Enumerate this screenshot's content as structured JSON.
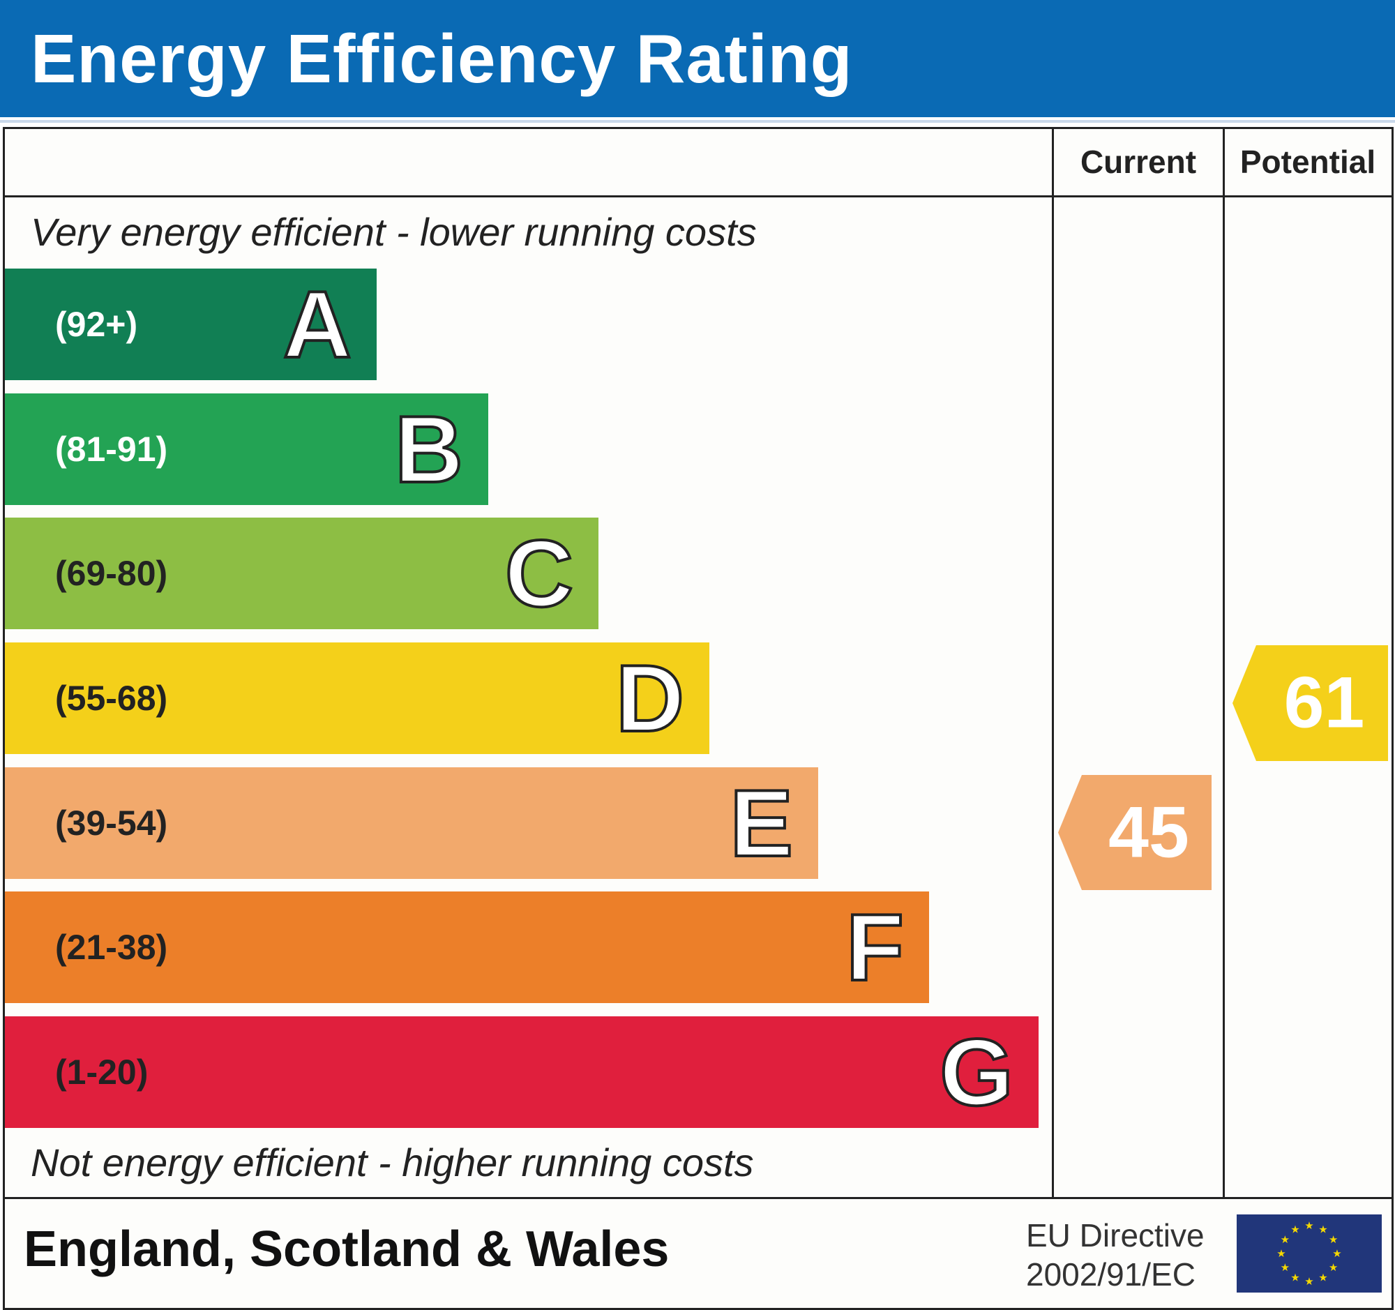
{
  "title": "Energy Efficiency Rating",
  "columns": {
    "current": "Current",
    "potential": "Potential"
  },
  "top_note": "Very energy efficient - lower running costs",
  "bottom_note": "Not energy efficient - higher running costs",
  "footer": {
    "region": "England, Scotland & Wales",
    "directive_line1": "EU Directive",
    "directive_line2": "2002/91/EC",
    "flag_icon": "eu-flag-icon"
  },
  "colors": {
    "header": "#0a6ab4"
  },
  "chart_data": {
    "type": "bar",
    "title": "Energy Efficiency Rating",
    "categories": [
      "A",
      "B",
      "C",
      "D",
      "E",
      "F",
      "G"
    ],
    "bands": [
      {
        "letter": "A",
        "range": "(92+)",
        "color": "#117f54",
        "text_color": "#ffffff"
      },
      {
        "letter": "B",
        "range": "(81-91)",
        "color": "#23a354",
        "text_color": "#ffffff"
      },
      {
        "letter": "C",
        "range": "(69-80)",
        "color": "#8dbe44",
        "text_color": "#222222"
      },
      {
        "letter": "D",
        "range": "(55-68)",
        "color": "#f4d01a",
        "text_color": "#222222"
      },
      {
        "letter": "E",
        "range": "(39-54)",
        "color": "#f2a96c",
        "text_color": "#222222"
      },
      {
        "letter": "F",
        "range": "(21-38)",
        "color": "#ec7f29",
        "text_color": "#222222"
      },
      {
        "letter": "G",
        "range": "(1-20)",
        "color": "#e01f3d",
        "text_color": "#222222"
      }
    ],
    "current": {
      "value": "45",
      "band": "E",
      "color": "#f2a96c"
    },
    "potential": {
      "value": "61",
      "band": "D",
      "color": "#f4d01a"
    }
  }
}
